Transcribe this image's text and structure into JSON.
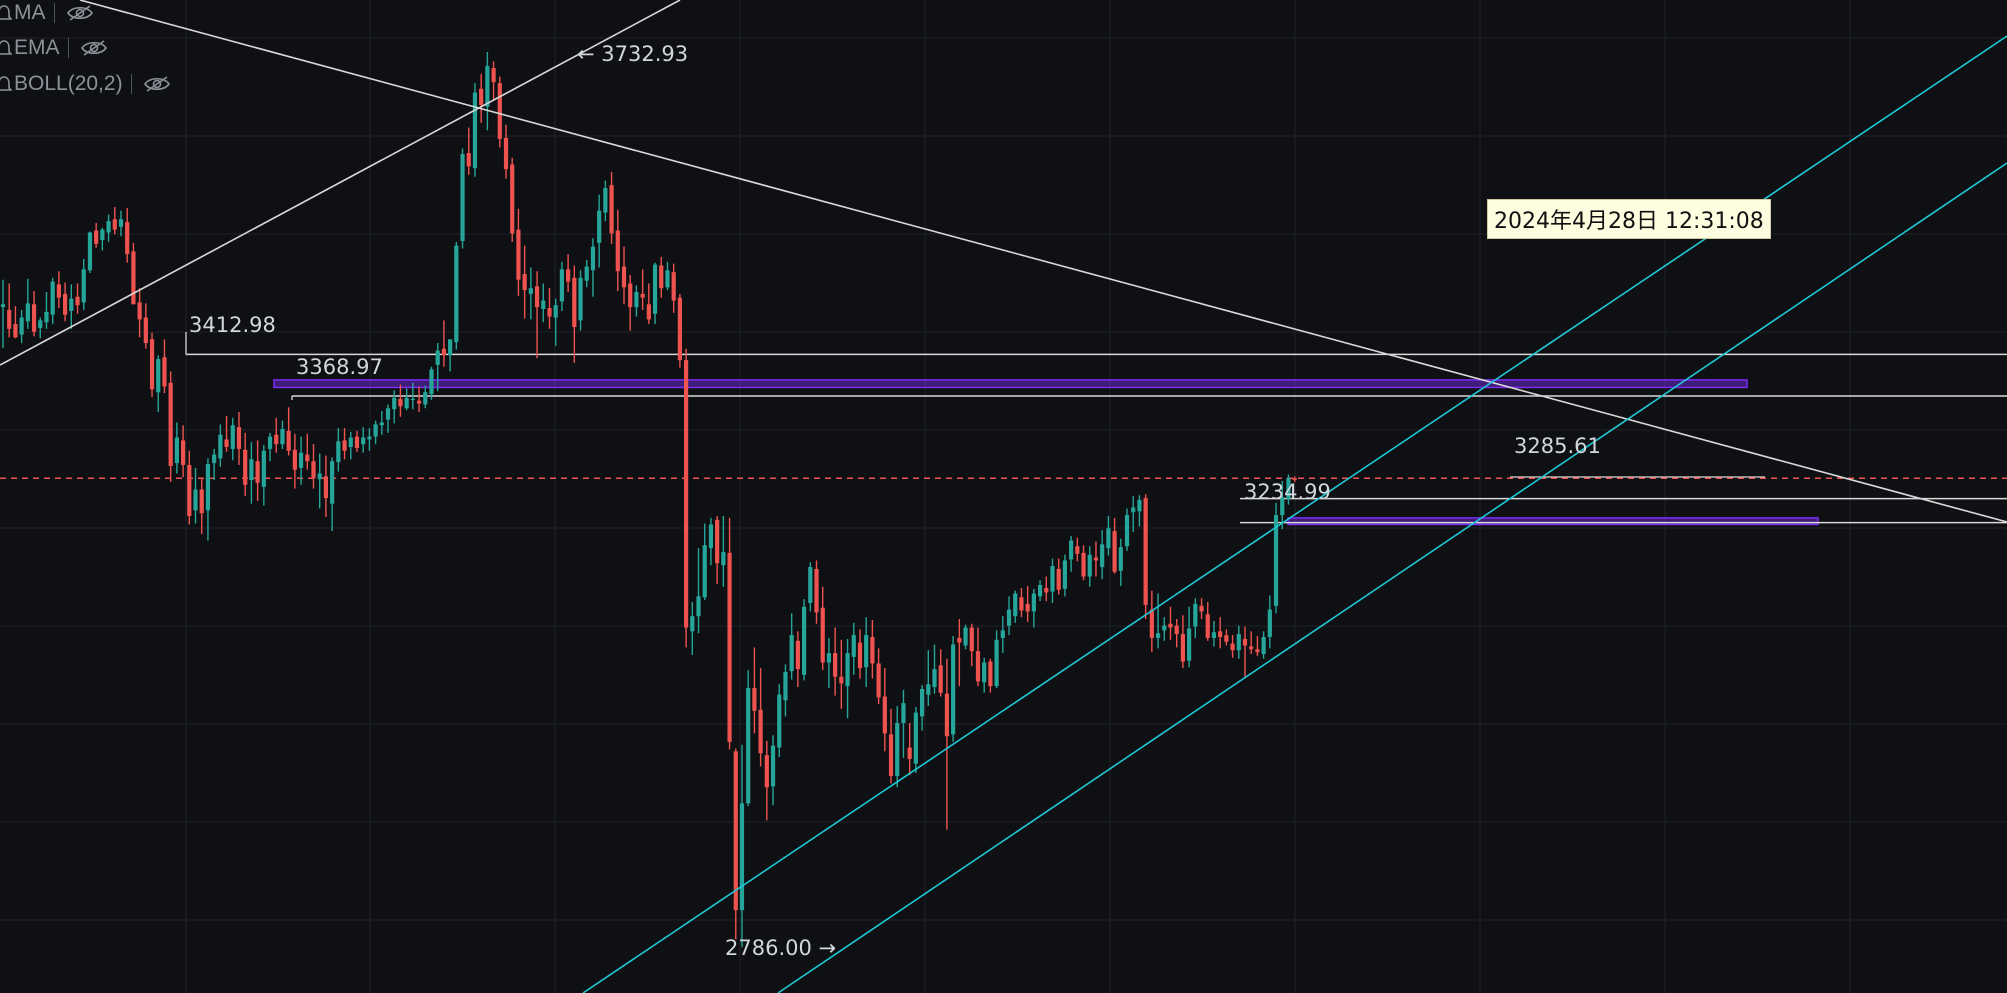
{
  "indicators": [
    {
      "name": "MA",
      "label": "MA"
    },
    {
      "name": "EMA",
      "label": "EMA"
    },
    {
      "name": "BOLL",
      "label": "BOLL(20,2)"
    }
  ],
  "tooltip_text": "2024年4月28日 12:31:08",
  "colors": {
    "background": "#0f1013",
    "grid": "#1f2228",
    "up": "#26a69a",
    "down": "#ef5350",
    "trendline": "#d9d9d9",
    "channel": "#1ec8d6",
    "zone": "#7b2cf5",
    "current_price_line": "#ef5350"
  },
  "chart_data": {
    "type": "candlestick",
    "title": "",
    "xlabel": "",
    "ylabel": "",
    "grid": true,
    "price_labels": [
      {
        "name": "high",
        "text": "3732.93",
        "value": 3732.93,
        "marker": "←"
      },
      {
        "name": "pivot-high-1",
        "text": "3412.98",
        "value": 3412.98
      },
      {
        "name": "pivot-high-2",
        "text": "3368.97",
        "value": 3368.97
      },
      {
        "name": "pivot-mid",
        "text": "3234.99",
        "value": 3234.99
      },
      {
        "name": "current-high",
        "text": "3285.61",
        "value": 3285.61
      },
      {
        "name": "low",
        "text": "2786.00",
        "value": 2786.0,
        "marker": "→"
      }
    ],
    "ohlc": [
      [
        3463,
        3492,
        3420,
        3466
      ],
      [
        3460,
        3488,
        3431,
        3440
      ],
      [
        3445,
        3464,
        3430,
        3431
      ],
      [
        3434,
        3460,
        3425,
        3452
      ],
      [
        3448,
        3493,
        3440,
        3467
      ],
      [
        3466,
        3480,
        3432,
        3437
      ],
      [
        3441,
        3452,
        3430,
        3449
      ],
      [
        3447,
        3479,
        3440,
        3458
      ],
      [
        3455,
        3494,
        3445,
        3490
      ],
      [
        3487,
        3501,
        3462,
        3473
      ],
      [
        3477,
        3489,
        3448,
        3455
      ],
      [
        3459,
        3487,
        3440,
        3472
      ],
      [
        3474,
        3488,
        3456,
        3465
      ],
      [
        3468,
        3514,
        3460,
        3503
      ],
      [
        3502,
        3543,
        3499,
        3542
      ],
      [
        3544,
        3552,
        3526,
        3530
      ],
      [
        3534,
        3547,
        3523,
        3545
      ],
      [
        3542,
        3561,
        3532,
        3554
      ],
      [
        3556,
        3569,
        3540,
        3545
      ],
      [
        3548,
        3565,
        3538,
        3556
      ],
      [
        3553,
        3568,
        3510,
        3519
      ],
      [
        3522,
        3531,
        3466,
        3466
      ],
      [
        3468,
        3483,
        3431,
        3450
      ],
      [
        3452,
        3467,
        3419,
        3425
      ],
      [
        3429,
        3436,
        3368,
        3376
      ],
      [
        3373,
        3412,
        3352,
        3408
      ],
      [
        3410,
        3429,
        3372,
        3379
      ],
      [
        3383,
        3395,
        3278,
        3295
      ],
      [
        3298,
        3341,
        3287,
        3325
      ],
      [
        3322,
        3338,
        3283,
        3296
      ],
      [
        3296,
        3311,
        3233,
        3242
      ],
      [
        3248,
        3293,
        3234,
        3270
      ],
      [
        3270,
        3282,
        3223,
        3245
      ],
      [
        3248,
        3303,
        3216,
        3297
      ],
      [
        3298,
        3313,
        3280,
        3307
      ],
      [
        3303,
        3339,
        3294,
        3328
      ],
      [
        3323,
        3348,
        3310,
        3315
      ],
      [
        3313,
        3346,
        3301,
        3338
      ],
      [
        3336,
        3352,
        3296,
        3313
      ],
      [
        3312,
        3330,
        3263,
        3275
      ],
      [
        3280,
        3320,
        3255,
        3302
      ],
      [
        3300,
        3322,
        3258,
        3277
      ],
      [
        3273,
        3317,
        3253,
        3311
      ],
      [
        3313,
        3330,
        3300,
        3326
      ],
      [
        3328,
        3346,
        3309,
        3318
      ],
      [
        3318,
        3343,
        3313,
        3334
      ],
      [
        3332,
        3357,
        3306,
        3311
      ],
      [
        3312,
        3329,
        3271,
        3291
      ],
      [
        3293,
        3326,
        3275,
        3309
      ],
      [
        3307,
        3329,
        3291,
        3300
      ],
      [
        3300,
        3318,
        3271,
        3282
      ],
      [
        3281,
        3308,
        3250,
        3287
      ],
      [
        3284,
        3306,
        3241,
        3261
      ],
      [
        3255,
        3304,
        3226,
        3300
      ],
      [
        3299,
        3335,
        3289,
        3321
      ],
      [
        3322,
        3335,
        3302,
        3311
      ],
      [
        3315,
        3331,
        3302,
        3325
      ],
      [
        3326,
        3332,
        3310,
        3314
      ],
      [
        3318,
        3336,
        3309,
        3325
      ],
      [
        3323,
        3335,
        3311,
        3326
      ],
      [
        3326,
        3343,
        3318,
        3339
      ],
      [
        3338,
        3353,
        3328,
        3341
      ],
      [
        3344,
        3360,
        3330,
        3356
      ],
      [
        3355,
        3375,
        3340,
        3367
      ],
      [
        3366,
        3381,
        3347,
        3358
      ],
      [
        3356,
        3377,
        3354,
        3367
      ],
      [
        3366,
        3383,
        3355,
        3366
      ],
      [
        3364,
        3379,
        3352,
        3361
      ],
      [
        3360,
        3380,
        3356,
        3373
      ],
      [
        3371,
        3400,
        3365,
        3397
      ],
      [
        3402,
        3425,
        3374,
        3417
      ],
      [
        3419,
        3449,
        3400,
        3412
      ],
      [
        3412,
        3428,
        3395,
        3429
      ],
      [
        3426,
        3532,
        3418,
        3528
      ],
      [
        3533,
        3631,
        3525,
        3625
      ],
      [
        3626,
        3653,
        3603,
        3612
      ],
      [
        3610,
        3700,
        3601,
        3690
      ],
      [
        3694,
        3710,
        3658,
        3677
      ],
      [
        3675,
        3733,
        3650,
        3718
      ],
      [
        3716,
        3723,
        3682,
        3701
      ],
      [
        3700,
        3707,
        3632,
        3641
      ],
      [
        3642,
        3656,
        3599,
        3609
      ],
      [
        3614,
        3621,
        3532,
        3541
      ],
      [
        3545,
        3567,
        3475,
        3492
      ],
      [
        3498,
        3528,
        3451,
        3481
      ],
      [
        3477,
        3505,
        3450,
        3483
      ],
      [
        3485,
        3501,
        3409,
        3463
      ],
      [
        3461,
        3488,
        3447,
        3470
      ],
      [
        3462,
        3483,
        3440,
        3453
      ],
      [
        3452,
        3472,
        3422,
        3465
      ],
      [
        3469,
        3511,
        3459,
        3503
      ],
      [
        3503,
        3519,
        3479,
        3490
      ],
      [
        3494,
        3507,
        3404,
        3442
      ],
      [
        3449,
        3502,
        3438,
        3494
      ],
      [
        3491,
        3513,
        3484,
        3506
      ],
      [
        3502,
        3536,
        3474,
        3527
      ],
      [
        3531,
        3582,
        3505,
        3565
      ],
      [
        3563,
        3597,
        3554,
        3589
      ],
      [
        3592,
        3606,
        3530,
        3541
      ],
      [
        3544,
        3566,
        3480,
        3501
      ],
      [
        3506,
        3527,
        3466,
        3484
      ],
      [
        3488,
        3497,
        3438,
        3463
      ],
      [
        3463,
        3486,
        3453,
        3479
      ],
      [
        3477,
        3503,
        3460,
        3473
      ],
      [
        3466,
        3488,
        3445,
        3450
      ],
      [
        3456,
        3510,
        3445,
        3508
      ],
      [
        3507,
        3516,
        3473,
        3483
      ],
      [
        3484,
        3511,
        3481,
        3502
      ],
      [
        3500,
        3509,
        3457,
        3470
      ],
      [
        3473,
        3477,
        3399,
        3407
      ],
      [
        3407,
        3419,
        3103,
        3124
      ],
      [
        3120,
        3151,
        3095,
        3136
      ],
      [
        3136,
        3208,
        3118,
        3157
      ],
      [
        3156,
        3234,
        3153,
        3211
      ],
      [
        3208,
        3240,
        3190,
        3233
      ],
      [
        3238,
        3242,
        3170,
        3192
      ],
      [
        3190,
        3242,
        3167,
        3204
      ],
      [
        3203,
        3240,
        2995,
        3003
      ],
      [
        2993,
        2996,
        2794,
        2825
      ],
      [
        2825,
        3000,
        2786,
        2938
      ],
      [
        2938,
        3079,
        2935,
        3060
      ],
      [
        3060,
        3103,
        3012,
        3036
      ],
      [
        3037,
        3081,
        2977,
        2991
      ],
      [
        2989,
        3004,
        2920,
        2955
      ],
      [
        2956,
        3010,
        2936,
        2999
      ],
      [
        2997,
        3064,
        2987,
        3053
      ],
      [
        3047,
        3085,
        3030,
        3077
      ],
      [
        3078,
        3139,
        3069,
        3116
      ],
      [
        3110,
        3120,
        3061,
        3080
      ],
      [
        3074,
        3154,
        3068,
        3146
      ],
      [
        3150,
        3193,
        3141,
        3188
      ],
      [
        3186,
        3195,
        3128,
        3140
      ],
      [
        3145,
        3167,
        3079,
        3087
      ],
      [
        3087,
        3113,
        3060,
        3097
      ],
      [
        3097,
        3124,
        3052,
        3072
      ],
      [
        3072,
        3111,
        3038,
        3065
      ],
      [
        3062,
        3112,
        3028,
        3097
      ],
      [
        3093,
        3129,
        3074,
        3116
      ],
      [
        3108,
        3122,
        3070,
        3081
      ],
      [
        3082,
        3135,
        3061,
        3116
      ],
      [
        3114,
        3132,
        3070,
        3086
      ],
      [
        3086,
        3102,
        3043,
        3050
      ],
      [
        3051,
        3081,
        2993,
        3012
      ],
      [
        3011,
        3038,
        2959,
        2967
      ],
      [
        2967,
        3041,
        2955,
        3023
      ],
      [
        3023,
        3058,
        2986,
        3044
      ],
      [
        2997,
        3023,
        2968,
        2985
      ],
      [
        2980,
        3040,
        2970,
        3034
      ],
      [
        3030,
        3063,
        3015,
        3059
      ],
      [
        3053,
        3100,
        3041,
        3064
      ],
      [
        3061,
        3106,
        3054,
        3080
      ],
      [
        3084,
        3101,
        3051,
        3055
      ],
      [
        3054,
        3091,
        2910,
        3009
      ],
      [
        3011,
        3115,
        3003,
        3106
      ],
      [
        3113,
        3133,
        3062,
        3108
      ],
      [
        3105,
        3127,
        3101,
        3124
      ],
      [
        3124,
        3128,
        3083,
        3099
      ],
      [
        3099,
        3124,
        3062,
        3067
      ],
      [
        3066,
        3092,
        3055,
        3087
      ],
      [
        3088,
        3091,
        3055,
        3062
      ],
      [
        3062,
        3121,
        3060,
        3111
      ],
      [
        3113,
        3136,
        3097,
        3121
      ],
      [
        3126,
        3157,
        3116,
        3143
      ],
      [
        3136,
        3163,
        3129,
        3160
      ],
      [
        3156,
        3166,
        3135,
        3142
      ],
      [
        3149,
        3168,
        3130,
        3141
      ],
      [
        3141,
        3165,
        3124,
        3160
      ],
      [
        3157,
        3174,
        3152,
        3169
      ],
      [
        3166,
        3178,
        3152,
        3161
      ],
      [
        3162,
        3197,
        3150,
        3189
      ],
      [
        3186,
        3197,
        3159,
        3164
      ],
      [
        3165,
        3201,
        3157,
        3195
      ],
      [
        3196,
        3221,
        3183,
        3216
      ],
      [
        3210,
        3219,
        3194,
        3202
      ],
      [
        3203,
        3211,
        3174,
        3178
      ],
      [
        3178,
        3210,
        3167,
        3201
      ],
      [
        3198,
        3215,
        3178,
        3195
      ],
      [
        3188,
        3227,
        3175,
        3212
      ],
      [
        3208,
        3242,
        3200,
        3229
      ],
      [
        3226,
        3240,
        3181,
        3183
      ],
      [
        3184,
        3218,
        3168,
        3209
      ],
      [
        3210,
        3250,
        3205,
        3243
      ],
      [
        3246,
        3263,
        3225,
        3251
      ],
      [
        3247,
        3264,
        3231,
        3259
      ],
      [
        3261,
        3265,
        3133,
        3148
      ],
      [
        3143,
        3163,
        3098,
        3113
      ],
      [
        3113,
        3160,
        3102,
        3118
      ],
      [
        3121,
        3135,
        3110,
        3126
      ],
      [
        3128,
        3146,
        3111,
        3124
      ],
      [
        3126,
        3133,
        3103,
        3117
      ],
      [
        3117,
        3137,
        3081,
        3088
      ],
      [
        3089,
        3146,
        3082,
        3123
      ],
      [
        3125,
        3155,
        3113,
        3149
      ],
      [
        3147,
        3155,
        3133,
        3141
      ],
      [
        3138,
        3151,
        3110,
        3113
      ],
      [
        3113,
        3131,
        3104,
        3119
      ],
      [
        3120,
        3135,
        3102,
        3114
      ],
      [
        3116,
        3122,
        3105,
        3109
      ],
      [
        3107,
        3116,
        3092,
        3100
      ],
      [
        3100,
        3126,
        3091,
        3117
      ],
      [
        3112,
        3125,
        3072,
        3105
      ],
      [
        3104,
        3120,
        3096,
        3101
      ],
      [
        3101,
        3115,
        3094,
        3098
      ],
      [
        3096,
        3120,
        3091,
        3114
      ],
      [
        3114,
        3158,
        3102,
        3143
      ],
      [
        3147,
        3256,
        3139,
        3243
      ],
      [
        3243,
        3279,
        3228,
        3262
      ],
      [
        3260,
        3286,
        3254,
        3282
      ],
      [
        3282,
        3284,
        3278,
        3280
      ]
    ],
    "horizontal_levels": [
      3412.98,
      3368.97,
      3282.0,
      3260.4,
      3234.99
    ],
    "current_price": 3282,
    "zones": [
      {
        "top": 3386,
        "bottom": 3378
      },
      {
        "top": 3240,
        "bottom": 3233
      }
    ],
    "tooltip": "2024年4月28日 12:31:08"
  }
}
